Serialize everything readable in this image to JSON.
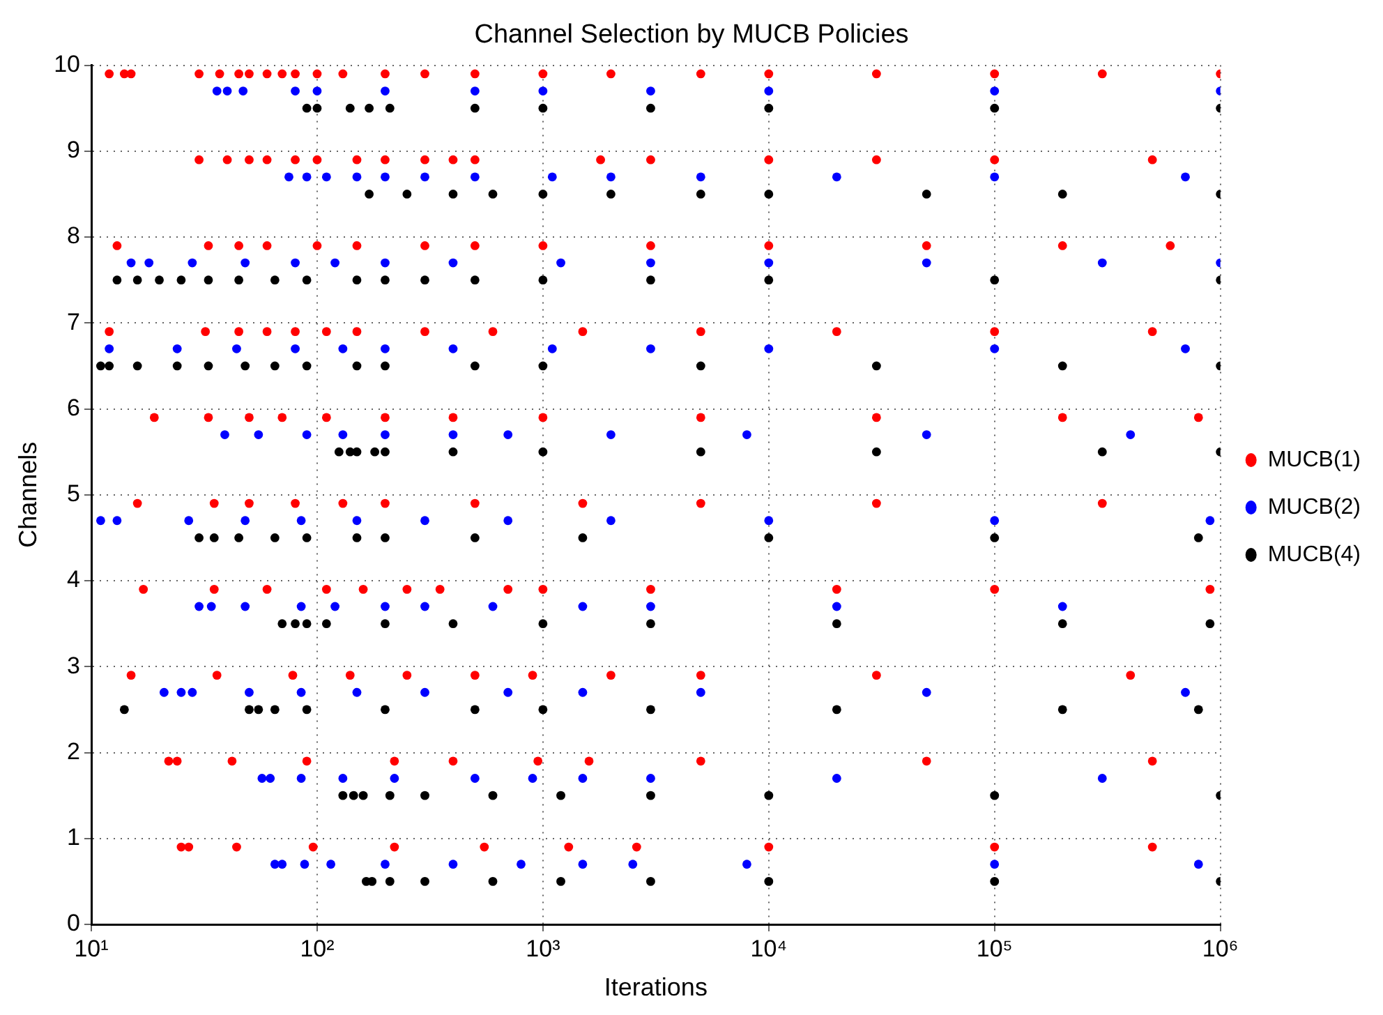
{
  "chart_data": {
    "type": "scatter",
    "title": "Channel Selection by MUCB Policies",
    "xlabel": "Iterations",
    "ylabel": "Channels",
    "log": "x",
    "grid": true,
    "legend": "right",
    "marker": "circle",
    "xlim": [
      10,
      1000000
    ],
    "xticks": [
      {
        "value": 10,
        "label": "10¹"
      },
      {
        "value": 100,
        "label": "10²"
      },
      {
        "value": 1000,
        "label": "10³"
      },
      {
        "value": 10000,
        "label": "10⁴"
      },
      {
        "value": 100000,
        "label": "10⁵"
      },
      {
        "value": 1000000,
        "label": "10⁶"
      }
    ],
    "ylim": [
      0,
      10
    ],
    "yticks": [
      0,
      1,
      2,
      3,
      4,
      5,
      6,
      7,
      8,
      9,
      10
    ],
    "series": [
      {
        "name": "MUCB(1)",
        "color": "#ff0000",
        "x": [
          12,
          14,
          15,
          30,
          37,
          45,
          50,
          60,
          70,
          80,
          100,
          130,
          200,
          300,
          500,
          1000,
          2000,
          5000,
          10000,
          30000,
          100000,
          300000,
          1000000,
          30,
          40,
          50,
          60,
          80,
          100,
          150,
          200,
          300,
          400,
          500,
          1800,
          3000,
          10000,
          30000,
          100000,
          500000,
          13,
          33,
          45,
          60,
          100,
          150,
          300,
          500,
          1000,
          3000,
          10000,
          50000,
          200000,
          600000,
          12,
          32,
          45,
          60,
          80,
          110,
          150,
          300,
          600,
          1500,
          5000,
          20000,
          100000,
          500000,
          19,
          33,
          50,
          70,
          110,
          200,
          400,
          1000,
          5000,
          30000,
          200000,
          800000,
          16,
          35,
          50,
          80,
          130,
          200,
          500,
          1500,
          5000,
          30000,
          300000,
          17,
          35,
          60,
          110,
          160,
          250,
          350,
          700,
          1000,
          3000,
          20000,
          100000,
          900000,
          15,
          36,
          78,
          140,
          250,
          500,
          900,
          2000,
          5000,
          30000,
          400000,
          22,
          24,
          42,
          90,
          220,
          400,
          950,
          1600,
          5000,
          50000,
          500000,
          25,
          27,
          44,
          96,
          220,
          550,
          1300,
          2600,
          10000,
          100000,
          500000
        ],
        "values": [
          9.9,
          9.9,
          9.9,
          9.9,
          9.9,
          9.9,
          9.9,
          9.9,
          9.9,
          9.9,
          9.9,
          9.9,
          9.9,
          9.9,
          9.9,
          9.9,
          9.9,
          9.9,
          9.9,
          9.9,
          9.9,
          9.9,
          9.9,
          8.9,
          8.9,
          8.9,
          8.9,
          8.9,
          8.9,
          8.9,
          8.9,
          8.9,
          8.9,
          8.9,
          8.9,
          8.9,
          8.9,
          8.9,
          8.9,
          8.9,
          7.9,
          7.9,
          7.9,
          7.9,
          7.9,
          7.9,
          7.9,
          7.9,
          7.9,
          7.9,
          7.9,
          7.9,
          7.9,
          7.9,
          6.9,
          6.9,
          6.9,
          6.9,
          6.9,
          6.9,
          6.9,
          6.9,
          6.9,
          6.9,
          6.9,
          6.9,
          6.9,
          6.9,
          5.9,
          5.9,
          5.9,
          5.9,
          5.9,
          5.9,
          5.9,
          5.9,
          5.9,
          5.9,
          5.9,
          5.9,
          4.9,
          4.9,
          4.9,
          4.9,
          4.9,
          4.9,
          4.9,
          4.9,
          4.9,
          4.9,
          4.9,
          3.9,
          3.9,
          3.9,
          3.9,
          3.9,
          3.9,
          3.9,
          3.9,
          3.9,
          3.9,
          3.9,
          3.9,
          3.9,
          2.9,
          2.9,
          2.9,
          2.9,
          2.9,
          2.9,
          2.9,
          2.9,
          2.9,
          2.9,
          2.9,
          1.9,
          1.9,
          1.9,
          1.9,
          1.9,
          1.9,
          1.9,
          1.9,
          1.9,
          1.9,
          1.9,
          0.9,
          0.9,
          0.9,
          0.9,
          0.9,
          0.9,
          0.9,
          0.9,
          0.9,
          0.9,
          0.9
        ]
      },
      {
        "name": "MUCB(2)",
        "color": "#0000ff",
        "x": [
          36,
          40,
          47,
          80,
          100,
          200,
          500,
          1000,
          3000,
          10000,
          100000,
          1000000,
          75,
          90,
          110,
          150,
          200,
          300,
          500,
          1100,
          2000,
          5000,
          20000,
          100000,
          700000,
          15,
          18,
          28,
          48,
          80,
          120,
          200,
          400,
          1200,
          3000,
          10000,
          50000,
          300000,
          1000000,
          12,
          24,
          44,
          80,
          130,
          200,
          400,
          1100,
          3000,
          10000,
          100000,
          700000,
          39,
          55,
          90,
          130,
          200,
          400,
          700,
          2000,
          8000,
          50000,
          400000,
          11,
          13,
          27,
          48,
          85,
          150,
          300,
          700,
          2000,
          10000,
          100000,
          900000,
          30,
          34,
          48,
          85,
          120,
          200,
          300,
          600,
          1500,
          3000,
          20000,
          200000,
          21,
          25,
          28,
          50,
          85,
          150,
          300,
          700,
          1500,
          5000,
          50000,
          700000,
          57,
          62,
          85,
          130,
          220,
          500,
          900,
          1500,
          3000,
          20000,
          300000,
          65,
          70,
          88,
          115,
          200,
          400,
          800,
          1500,
          2500,
          8000,
          100000,
          800000
        ],
        "values": [
          9.7,
          9.7,
          9.7,
          9.7,
          9.7,
          9.7,
          9.7,
          9.7,
          9.7,
          9.7,
          9.7,
          9.7,
          8.7,
          8.7,
          8.7,
          8.7,
          8.7,
          8.7,
          8.7,
          8.7,
          8.7,
          8.7,
          8.7,
          8.7,
          8.7,
          7.7,
          7.7,
          7.7,
          7.7,
          7.7,
          7.7,
          7.7,
          7.7,
          7.7,
          7.7,
          7.7,
          7.7,
          7.7,
          7.7,
          6.7,
          6.7,
          6.7,
          6.7,
          6.7,
          6.7,
          6.7,
          6.7,
          6.7,
          6.7,
          6.7,
          6.7,
          5.7,
          5.7,
          5.7,
          5.7,
          5.7,
          5.7,
          5.7,
          5.7,
          5.7,
          5.7,
          5.7,
          4.7,
          4.7,
          4.7,
          4.7,
          4.7,
          4.7,
          4.7,
          4.7,
          4.7,
          4.7,
          4.7,
          4.7,
          3.7,
          3.7,
          3.7,
          3.7,
          3.7,
          3.7,
          3.7,
          3.7,
          3.7,
          3.7,
          3.7,
          3.7,
          2.7,
          2.7,
          2.7,
          2.7,
          2.7,
          2.7,
          2.7,
          2.7,
          2.7,
          2.7,
          2.7,
          2.7,
          1.7,
          1.7,
          1.7,
          1.7,
          1.7,
          1.7,
          1.7,
          1.7,
          1.7,
          1.7,
          1.7,
          0.7,
          0.7,
          0.7,
          0.7,
          0.7,
          0.7,
          0.7,
          0.7,
          0.7,
          0.7,
          0.7,
          0.7
        ]
      },
      {
        "name": "MUCB(4)",
        "color": "#000000",
        "x": [
          90,
          100,
          140,
          170,
          210,
          500,
          1000,
          3000,
          10000,
          100000,
          1000000,
          170,
          250,
          400,
          600,
          1000,
          2000,
          5000,
          10000,
          50000,
          200000,
          1000000,
          13,
          16,
          20,
          25,
          33,
          45,
          65,
          90,
          150,
          200,
          300,
          500,
          1000,
          3000,
          10000,
          100000,
          1000000,
          11,
          12,
          16,
          24,
          33,
          48,
          65,
          90,
          150,
          200,
          500,
          1000,
          5000,
          30000,
          200000,
          1000000,
          125,
          140,
          150,
          180,
          200,
          400,
          1000,
          5000,
          30000,
          300000,
          1000000,
          30,
          35,
          45,
          65,
          90,
          150,
          200,
          500,
          1500,
          10000,
          100000,
          800000,
          70,
          80,
          90,
          110,
          200,
          400,
          1000,
          3000,
          20000,
          200000,
          900000,
          14,
          50,
          55,
          65,
          90,
          200,
          500,
          1000,
          3000,
          20000,
          200000,
          800000,
          130,
          145,
          160,
          210,
          300,
          600,
          1200,
          3000,
          10000,
          100000,
          1000000,
          165,
          175,
          210,
          300,
          600,
          1200,
          3000,
          10000,
          100000,
          1000000
        ],
        "values": [
          9.5,
          9.5,
          9.5,
          9.5,
          9.5,
          9.5,
          9.5,
          9.5,
          9.5,
          9.5,
          9.5,
          8.5,
          8.5,
          8.5,
          8.5,
          8.5,
          8.5,
          8.5,
          8.5,
          8.5,
          8.5,
          8.5,
          7.5,
          7.5,
          7.5,
          7.5,
          7.5,
          7.5,
          7.5,
          7.5,
          7.5,
          7.5,
          7.5,
          7.5,
          7.5,
          7.5,
          7.5,
          7.5,
          7.5,
          6.5,
          6.5,
          6.5,
          6.5,
          6.5,
          6.5,
          6.5,
          6.5,
          6.5,
          6.5,
          6.5,
          6.5,
          6.5,
          6.5,
          6.5,
          6.5,
          5.5,
          5.5,
          5.5,
          5.5,
          5.5,
          5.5,
          5.5,
          5.5,
          5.5,
          5.5,
          5.5,
          4.5,
          4.5,
          4.5,
          4.5,
          4.5,
          4.5,
          4.5,
          4.5,
          4.5,
          4.5,
          4.5,
          4.5,
          3.5,
          3.5,
          3.5,
          3.5,
          3.5,
          3.5,
          3.5,
          3.5,
          3.5,
          3.5,
          3.5,
          2.5,
          2.5,
          2.5,
          2.5,
          2.5,
          2.5,
          2.5,
          2.5,
          2.5,
          2.5,
          2.5,
          2.5,
          1.5,
          1.5,
          1.5,
          1.5,
          1.5,
          1.5,
          1.5,
          1.5,
          1.5,
          1.5,
          1.5,
          0.5,
          0.5,
          0.5,
          0.5,
          0.5,
          0.5,
          0.5,
          0.5,
          0.5,
          0.5
        ]
      }
    ]
  }
}
